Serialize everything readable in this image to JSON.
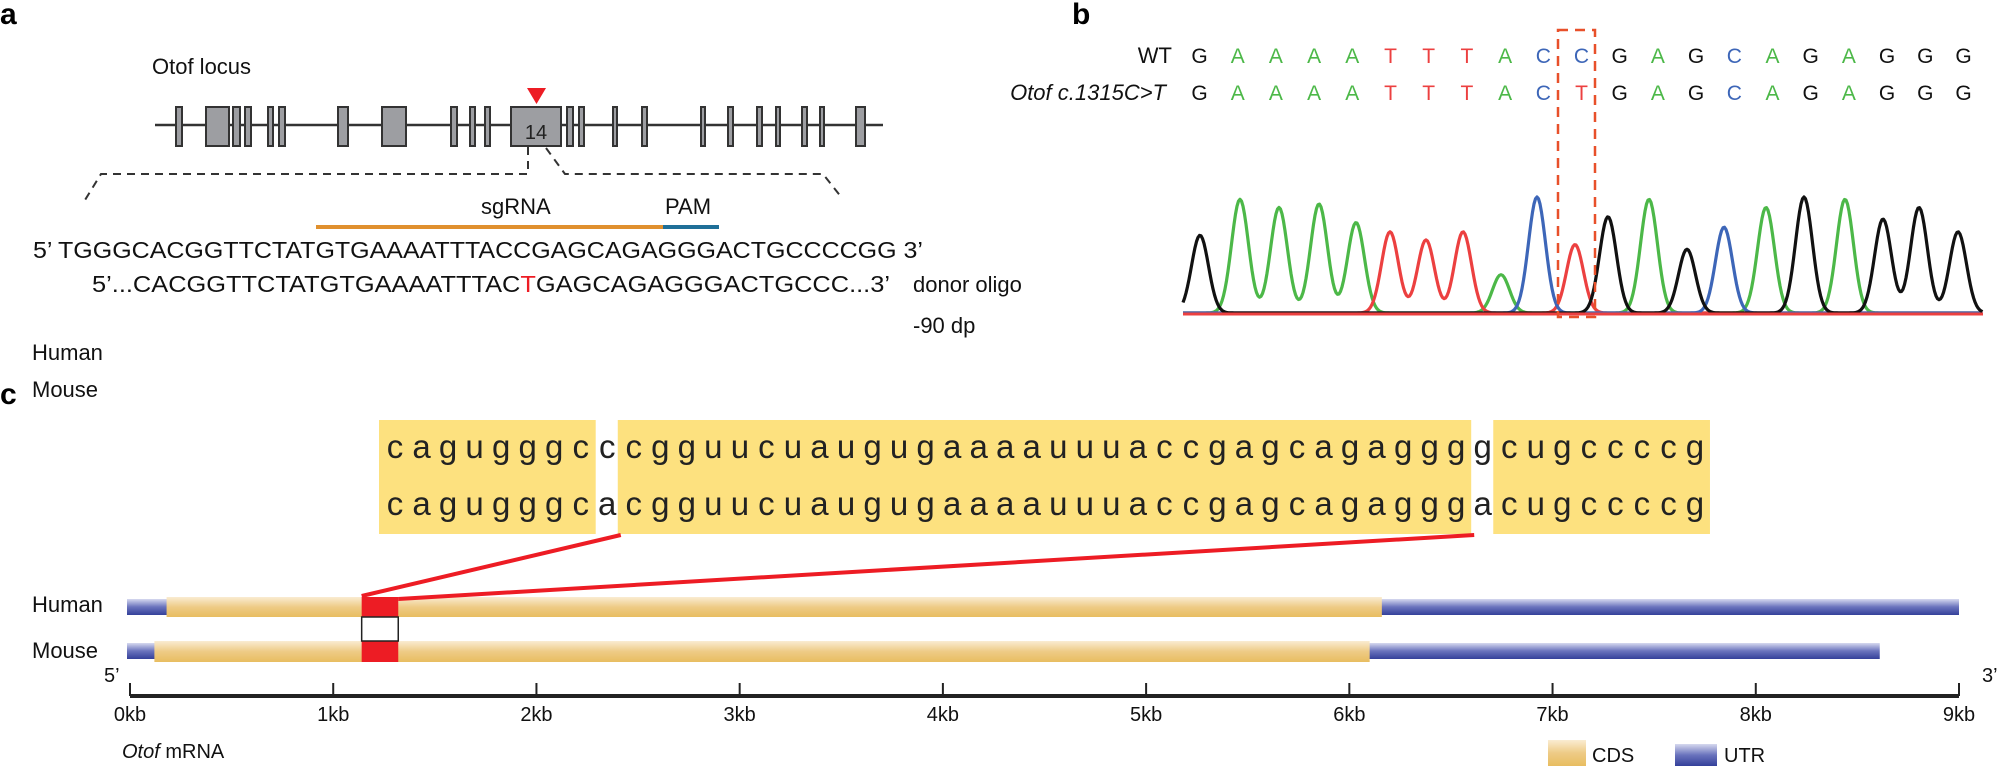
{
  "panel_a": {
    "label": "a",
    "locus_title": "Otof locus",
    "exon_label": "14",
    "sgrna_label": "sgRNA",
    "pam_label": "PAM",
    "genomic_seq": "5’ TGGGCACGGTTCTATGTGAAAATTTACCGAGCAGAGGGACTGCCCCGG 3’",
    "donor_seq_prefix": "5’...CACGGTTCTATGTGAAAATTTAC",
    "donor_seq_mutation": "T",
    "donor_seq_suffix": "GAGCAGAGGGACTGCCC...3’",
    "donor_label": "donor oligo",
    "donor_length": "-90 dp",
    "colors": {
      "sgrna": "#e0902e",
      "pam": "#1f6f98",
      "cut_marker": "#ed1c24",
      "exon": "#9d9ea2",
      "mutation": "#ed1c24"
    }
  },
  "panel_b": {
    "label": "b",
    "wt_label": "WT",
    "mut_label": "Otof c.1315C>T",
    "wt_seq": [
      "G",
      "A",
      "A",
      "A",
      "A",
      "T",
      "T",
      "T",
      "A",
      "C",
      "C",
      "G",
      "A",
      "G",
      "C",
      "A",
      "G",
      "A",
      "G",
      "G",
      "G"
    ],
    "mut_seq": [
      "G",
      "A",
      "A",
      "A",
      "A",
      "T",
      "T",
      "T",
      "A",
      "C",
      "T",
      "G",
      "A",
      "G",
      "C",
      "A",
      "G",
      "A",
      "G",
      "G",
      "G"
    ],
    "highlight_index": 10,
    "trace_calls": [
      "G",
      "A",
      "A",
      "A",
      "A",
      "T",
      "T",
      "T",
      "A",
      "C",
      "T",
      "G",
      "A",
      "G",
      "C",
      "A",
      "G",
      "A",
      "G",
      "G",
      "G"
    ],
    "trace_relative_intensity": [
      0.67,
      0.98,
      0.91,
      0.94,
      0.78,
      0.7,
      0.63,
      0.7,
      0.33,
      1.0,
      0.59,
      0.83,
      0.98,
      0.55,
      0.74,
      0.91,
      1.0,
      0.98,
      0.81,
      0.91,
      0.7
    ],
    "base_colors": {
      "G": "#111111",
      "A": "#4cb848",
      "T": "#ec4040",
      "C": "#3d66b8"
    },
    "highlight_color": "#e8502a"
  },
  "panel_c": {
    "label": "c",
    "rows": [
      {
        "species": "Human",
        "blocks": [
          "cagugggc",
          "c",
          "cgguucuaugugaaaauuuaccgagcagaggg",
          "g",
          "cugccccg"
        ]
      },
      {
        "species": "Mouse",
        "blocks": [
          "cagugggc",
          "a",
          "cgguucuaugugaaaauuuaccgagcagaggg",
          "a",
          "cugccccg"
        ]
      }
    ],
    "conserved_blocks": [
      0,
      2,
      4
    ],
    "highlight_block": 2,
    "highlight_letter": 21,
    "mrna": [
      {
        "species": "Human",
        "utr_kb": [
          0,
          9.0
        ],
        "cds_kb": [
          0.18,
          6.16
        ]
      },
      {
        "species": "Mouse",
        "utr_kb": [
          0,
          8.61
        ],
        "cds_kb": [
          0.12,
          6.1
        ]
      }
    ],
    "target_kb": [
      1.14,
      1.32
    ],
    "five_prime": "5’",
    "three_prime": "3’",
    "axis_ticks": [
      "0kb",
      "1kb",
      "2kb",
      "3kb",
      "4kb",
      "5kb",
      "6kb",
      "7kb",
      "8kb",
      "9kb"
    ],
    "axis_range_kb": [
      0,
      9
    ],
    "caption_gene": "Otof",
    "caption_rest": " mRNA",
    "legend": [
      {
        "label": "CDS",
        "color": "#e9c46c"
      },
      {
        "label": "UTR",
        "color": "#3b48a0"
      }
    ],
    "colors": {
      "conserved": "#fde17f",
      "highlight": "#ed1c24",
      "link": "#ed1c24"
    }
  }
}
